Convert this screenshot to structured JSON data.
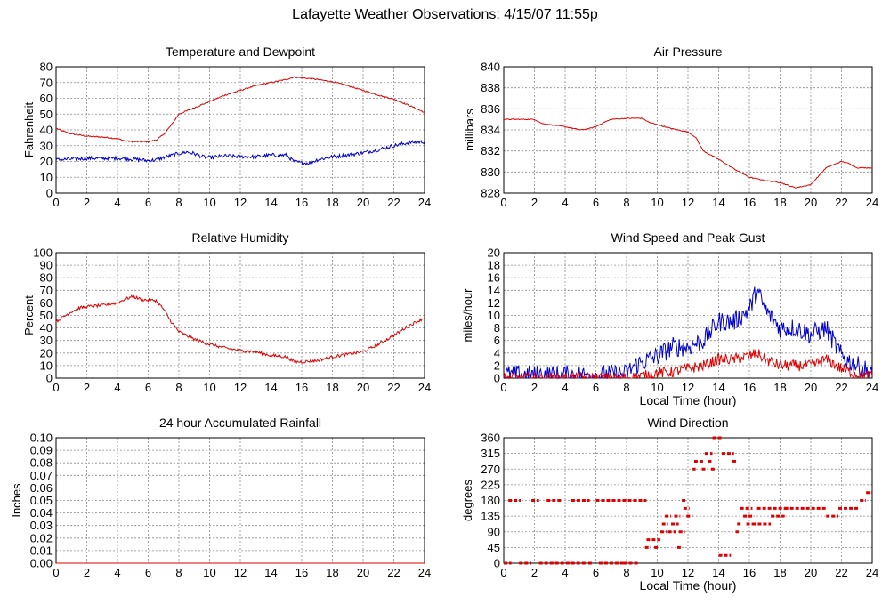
{
  "title": "Lafayette Weather Observations: 4/15/07 11:55p",
  "colors": {
    "red": "#dd0000",
    "blue": "#0000cc",
    "grid": "#8c8c8c"
  },
  "chart_data": [
    {
      "id": "temp",
      "type": "line",
      "title": "Temperature and Dewpoint",
      "xlabel": "",
      "ylabel": "Fahrenheit",
      "xlim": [
        0,
        24
      ],
      "ylim": [
        0,
        80
      ],
      "xticks": [
        0,
        2,
        4,
        6,
        8,
        10,
        12,
        14,
        16,
        18,
        20,
        22,
        24
      ],
      "yticks": [
        "0",
        "10",
        "20",
        "30",
        "40",
        "50",
        "60",
        "70",
        "80"
      ],
      "series": [
        {
          "color": "red",
          "noise": 0.4,
          "points": [
            [
              0,
              41
            ],
            [
              0.5,
              39
            ],
            [
              1,
              37.5
            ],
            [
              2,
              36
            ],
            [
              3,
              35.5
            ],
            [
              4,
              34.5
            ],
            [
              4.5,
              33
            ],
            [
              5,
              32.5
            ],
            [
              6,
              32.5
            ],
            [
              6.5,
              33.5
            ],
            [
              7,
              37
            ],
            [
              7.5,
              43
            ],
            [
              8,
              50
            ],
            [
              9,
              54
            ],
            [
              10,
              58
            ],
            [
              11,
              62
            ],
            [
              12,
              65
            ],
            [
              13,
              68
            ],
            [
              14,
              70
            ],
            [
              15,
              72
            ],
            [
              15.5,
              73.5
            ],
            [
              16,
              73
            ],
            [
              17,
              72
            ],
            [
              18,
              70.5
            ],
            [
              19,
              68
            ],
            [
              20,
              65
            ],
            [
              21,
              62
            ],
            [
              22,
              59.5
            ],
            [
              23,
              55.5
            ],
            [
              24,
              51
            ]
          ]
        },
        {
          "color": "blue",
          "noise": 1.2,
          "points": [
            [
              0,
              21
            ],
            [
              1,
              21.5
            ],
            [
              2,
              22
            ],
            [
              3,
              22
            ],
            [
              4,
              22
            ],
            [
              5,
              21.5
            ],
            [
              6,
              20.5
            ],
            [
              6.5,
              21
            ],
            [
              7,
              22.5
            ],
            [
              8,
              25
            ],
            [
              8.5,
              26
            ],
            [
              9,
              25
            ],
            [
              9.5,
              23
            ],
            [
              10,
              22.5
            ],
            [
              11,
              23.5
            ],
            [
              12,
              23
            ],
            [
              13,
              23
            ],
            [
              14,
              24
            ],
            [
              15,
              24
            ],
            [
              15.5,
              20
            ],
            [
              16,
              19
            ],
            [
              16.5,
              19
            ],
            [
              17,
              21
            ],
            [
              18,
              23
            ],
            [
              19,
              24
            ],
            [
              20,
              25.5
            ],
            [
              21,
              27.5
            ],
            [
              22,
              30
            ],
            [
              23,
              32
            ],
            [
              24,
              32.5
            ]
          ]
        }
      ]
    },
    {
      "id": "pressure",
      "type": "line",
      "title": "Air Pressure",
      "xlabel": "",
      "ylabel": "millibars",
      "xlim": [
        0,
        24
      ],
      "ylim": [
        828,
        840
      ],
      "xticks": [
        0,
        2,
        4,
        6,
        8,
        10,
        12,
        14,
        16,
        18,
        20,
        22,
        24
      ],
      "yticks": [
        "828",
        "830",
        "832",
        "834",
        "836",
        "838",
        "840"
      ],
      "series": [
        {
          "color": "red",
          "noise": 0.04,
          "points": [
            [
              0,
              835
            ],
            [
              2,
              835
            ],
            [
              2.5,
              834.6
            ],
            [
              4,
              834.3
            ],
            [
              5,
              834.0
            ],
            [
              5.5,
              834.1
            ],
            [
              6,
              834.3
            ],
            [
              6.5,
              834.7
            ],
            [
              7,
              835
            ],
            [
              8,
              835.1
            ],
            [
              9,
              835.1
            ],
            [
              9.5,
              834.7
            ],
            [
              10,
              834.5
            ],
            [
              11,
              834.1
            ],
            [
              12,
              833.8
            ],
            [
              12.5,
              833.3
            ],
            [
              13,
              832
            ],
            [
              14,
              831.2
            ],
            [
              15,
              830.3
            ],
            [
              16,
              829.5
            ],
            [
              17,
              829.2
            ],
            [
              18,
              829
            ],
            [
              19,
              828.5
            ],
            [
              20,
              828.8
            ],
            [
              21,
              830.4
            ],
            [
              22,
              831
            ],
            [
              22.5,
              830.8
            ],
            [
              23,
              830.4
            ],
            [
              24,
              830.4
            ]
          ]
        }
      ]
    },
    {
      "id": "humidity",
      "type": "line",
      "title": "Relative Humidity",
      "xlabel": "",
      "ylabel": "Percent",
      "xlim": [
        0,
        24
      ],
      "ylim": [
        0,
        100
      ],
      "xticks": [
        0,
        2,
        4,
        6,
        8,
        10,
        12,
        14,
        16,
        18,
        20,
        22,
        24
      ],
      "yticks": [
        "0",
        "10",
        "20",
        "30",
        "40",
        "50",
        "60",
        "70",
        "80",
        "90",
        "100"
      ],
      "series": [
        {
          "color": "red",
          "noise": 1.2,
          "points": [
            [
              0,
              45
            ],
            [
              0.5,
              49
            ],
            [
              1,
              53
            ],
            [
              1.5,
              56
            ],
            [
              2,
              57
            ],
            [
              3,
              58
            ],
            [
              4,
              60
            ],
            [
              4.5,
              63
            ],
            [
              5,
              65
            ],
            [
              5.5,
              63
            ],
            [
              6,
              62
            ],
            [
              6.5,
              62
            ],
            [
              7,
              55
            ],
            [
              7.5,
              45
            ],
            [
              8,
              37
            ],
            [
              8.5,
              34
            ],
            [
              9,
              31
            ],
            [
              10,
              27
            ],
            [
              11,
              24
            ],
            [
              12,
              22
            ],
            [
              13,
              21
            ],
            [
              14,
              18
            ],
            [
              15,
              17
            ],
            [
              15.5,
              13
            ],
            [
              16,
              13
            ],
            [
              17,
              14
            ],
            [
              18,
              17
            ],
            [
              19,
              19
            ],
            [
              20,
              21
            ],
            [
              21,
              27
            ],
            [
              22,
              34
            ],
            [
              23,
              42
            ],
            [
              24,
              48
            ]
          ]
        }
      ]
    },
    {
      "id": "wind",
      "type": "line",
      "title": "Wind Speed and Peak Gust",
      "xlabel": "Local Time (hour)",
      "ylabel": "miles/hour",
      "xlim": [
        0,
        24
      ],
      "ylim": [
        0,
        20
      ],
      "xticks": [
        0,
        2,
        4,
        6,
        8,
        10,
        12,
        14,
        16,
        18,
        20,
        22,
        24
      ],
      "yticks": [
        "0",
        "2",
        "4",
        "6",
        "8",
        "10",
        "12",
        "14",
        "16",
        "18",
        "20"
      ],
      "series": [
        {
          "color": "blue",
          "noise": 1.6,
          "clip": true,
          "points": [
            [
              0,
              0.5
            ],
            [
              2,
              0.5
            ],
            [
              4,
              0.5
            ],
            [
              6,
              0.5
            ],
            [
              8,
              0.7
            ],
            [
              8.5,
              2
            ],
            [
              9,
              2.5
            ],
            [
              10,
              3.5
            ],
            [
              11,
              5
            ],
            [
              12,
              5
            ],
            [
              13,
              6
            ],
            [
              14,
              9
            ],
            [
              15,
              9
            ],
            [
              16,
              11
            ],
            [
              16.5,
              14
            ],
            [
              17,
              11
            ],
            [
              18,
              8
            ],
            [
              19,
              8
            ],
            [
              20,
              7
            ],
            [
              21,
              8
            ],
            [
              22,
              3.5
            ],
            [
              23,
              2
            ],
            [
              24,
              0.8
            ]
          ]
        },
        {
          "color": "red",
          "noise": 0.9,
          "clip": true,
          "points": [
            [
              0,
              0
            ],
            [
              8,
              0
            ],
            [
              9,
              0.3
            ],
            [
              10,
              0.8
            ],
            [
              11,
              1
            ],
            [
              12,
              1.5
            ],
            [
              13,
              2
            ],
            [
              14,
              3
            ],
            [
              15,
              3
            ],
            [
              16,
              3.5
            ],
            [
              16.5,
              4
            ],
            [
              17,
              3
            ],
            [
              18,
              2
            ],
            [
              19,
              2
            ],
            [
              20,
              2
            ],
            [
              21,
              3
            ],
            [
              22,
              1.5
            ],
            [
              23,
              0.6
            ],
            [
              24,
              0.3
            ]
          ]
        }
      ]
    },
    {
      "id": "rain",
      "type": "line",
      "title": "24 hour Accumulated Rainfall",
      "xlabel": "",
      "ylabel": "Inches",
      "xlim": [
        0,
        24
      ],
      "ylim": [
        0,
        0.1
      ],
      "xticks": [
        0,
        2,
        4,
        6,
        8,
        10,
        12,
        14,
        16,
        18,
        20,
        22,
        24
      ],
      "yticks": [
        "0.00",
        "0.01",
        "0.02",
        "0.03",
        "0.04",
        "0.05",
        "0.06",
        "0.07",
        "0.08",
        "0.09",
        "0.10"
      ],
      "series": [
        {
          "color": "red",
          "noise": 0,
          "points": [
            [
              0,
              0
            ],
            [
              24,
              0
            ]
          ]
        }
      ]
    },
    {
      "id": "direction",
      "type": "scatter",
      "title": "Wind Direction",
      "xlabel": "Local Time (hour)",
      "ylabel": "degrees",
      "xlim": [
        0,
        24
      ],
      "ylim": [
        0,
        360
      ],
      "xticks": [
        0,
        2,
        4,
        6,
        8,
        10,
        12,
        14,
        16,
        18,
        20,
        22,
        24
      ],
      "yticks": [
        "0",
        "45",
        "90",
        "135",
        "180",
        "225",
        "270",
        "315",
        "360"
      ],
      "series": [
        {
          "color": "red",
          "segments": [
            [
              0,
              0.5,
              0
            ],
            [
              0.3,
              1.1,
              180
            ],
            [
              1.0,
              1.8,
              0
            ],
            [
              1.8,
              2.3,
              180
            ],
            [
              2.3,
              3.0,
              0
            ],
            [
              2.8,
              3.8,
              180
            ],
            [
              3.0,
              5.4,
              0
            ],
            [
              4.4,
              5.6,
              180
            ],
            [
              5.5,
              5.8,
              0
            ],
            [
              6.2,
              7.8,
              0
            ],
            [
              6.0,
              9.3,
              180
            ],
            [
              7.8,
              8.8,
              0
            ],
            [
              9.2,
              9.6,
              45
            ],
            [
              9.3,
              10.2,
              67.5
            ],
            [
              9.8,
              10.1,
              45
            ],
            [
              10.2,
              10.6,
              90
            ],
            [
              10.3,
              10.7,
              112.5
            ],
            [
              10.5,
              10.9,
              135
            ],
            [
              10.7,
              11.2,
              90
            ],
            [
              10.9,
              11.4,
              112.5
            ],
            [
              11.1,
              11.5,
              135
            ],
            [
              11.3,
              11.6,
              45
            ],
            [
              11.4,
              11.8,
              90
            ],
            [
              11.6,
              11.9,
              180
            ],
            [
              11.7,
              12.1,
              157.5
            ],
            [
              11.9,
              12.3,
              135
            ],
            [
              12.3,
              12.5,
              270
            ],
            [
              12.4,
              13.0,
              292.5
            ],
            [
              12.9,
              13.2,
              270
            ],
            [
              13.1,
              13.6,
              315
            ],
            [
              13.3,
              13.6,
              292.5
            ],
            [
              13.5,
              13.8,
              270
            ],
            [
              13.6,
              14.2,
              360
            ],
            [
              14.0,
              14.8,
              22.5
            ],
            [
              14.2,
              15.0,
              315
            ],
            [
              14.9,
              15.2,
              292.5
            ],
            [
              15.1,
              15.3,
              90
            ],
            [
              15.2,
              15.5,
              112.5
            ],
            [
              15.4,
              16.2,
              157.5
            ],
            [
              15.6,
              16.3,
              135
            ],
            [
              15.8,
              16.5,
              112.5
            ],
            [
              16.2,
              17.4,
              112.5
            ],
            [
              16.5,
              18.5,
              157.5
            ],
            [
              17.4,
              18.3,
              135
            ],
            [
              18.3,
              21.0,
              157.5
            ],
            [
              21.0,
              21.8,
              135
            ],
            [
              21.8,
              23.2,
              157.5
            ],
            [
              23.2,
              23.6,
              180
            ],
            [
              23.6,
              24,
              202.5
            ]
          ]
        }
      ]
    }
  ]
}
